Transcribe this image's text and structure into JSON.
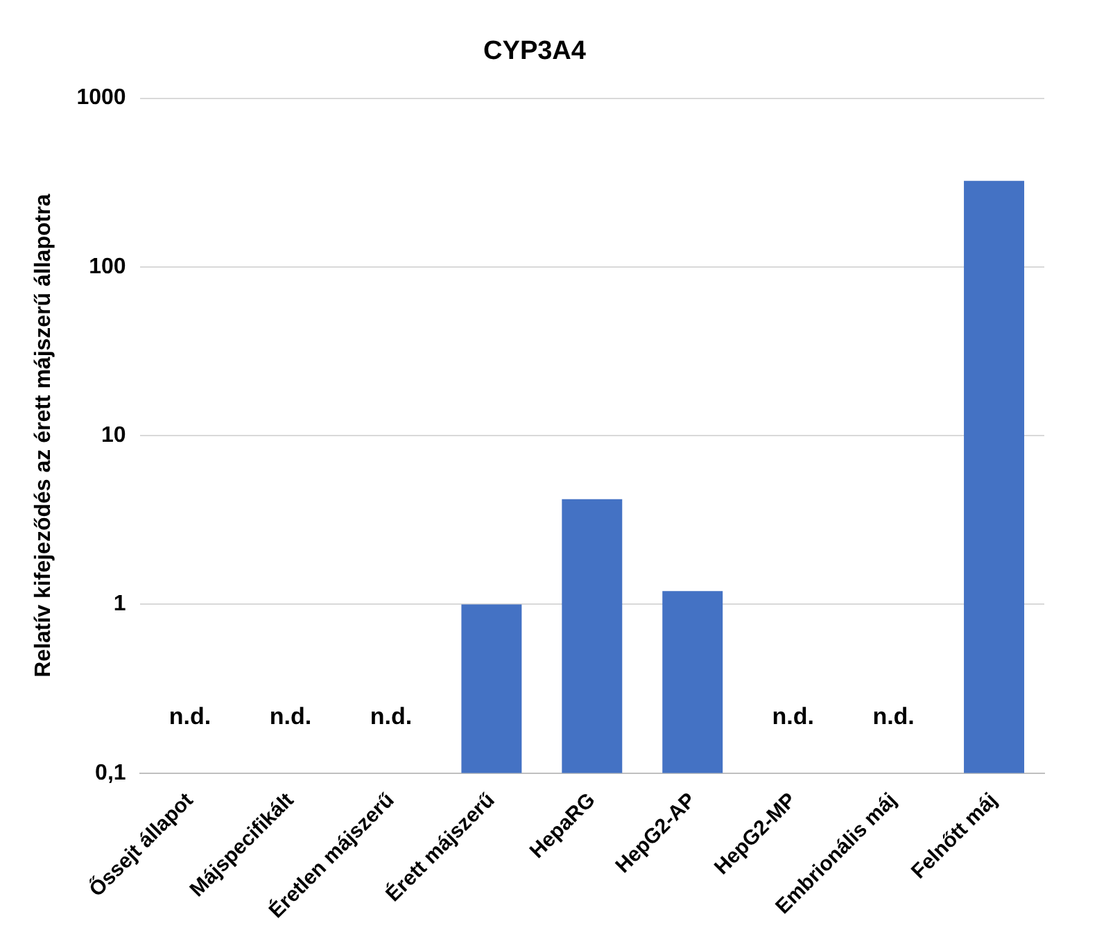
{
  "chart_data": {
    "type": "bar",
    "title": "CYP3A4",
    "ylabel": "Relatív kifejeződés az érett májszerű állapotra",
    "categories": [
      "Őssejt állapot",
      "Májspecifikált",
      "Éretlen májszerű",
      "Érett májszerű",
      "HepaRG",
      "HepG2-AP",
      "HepG2-MP",
      "Embrionális máj",
      "Felnőtt máj"
    ],
    "values": [
      null,
      null,
      null,
      1,
      4.2,
      1.2,
      null,
      null,
      324
    ],
    "color": "#4472c4",
    "log": true,
    "ylim": [
      0.1,
      1000
    ],
    "yticks": [
      {
        "value": 0.1,
        "label": "0,1"
      },
      1,
      10,
      100,
      1000
    ],
    "grid": "y",
    "legend": false,
    "value_labels": [
      "n.d.",
      "n.d.",
      "n.d.",
      null,
      null,
      null,
      "n.d.",
      "n.d.",
      null
    ]
  }
}
